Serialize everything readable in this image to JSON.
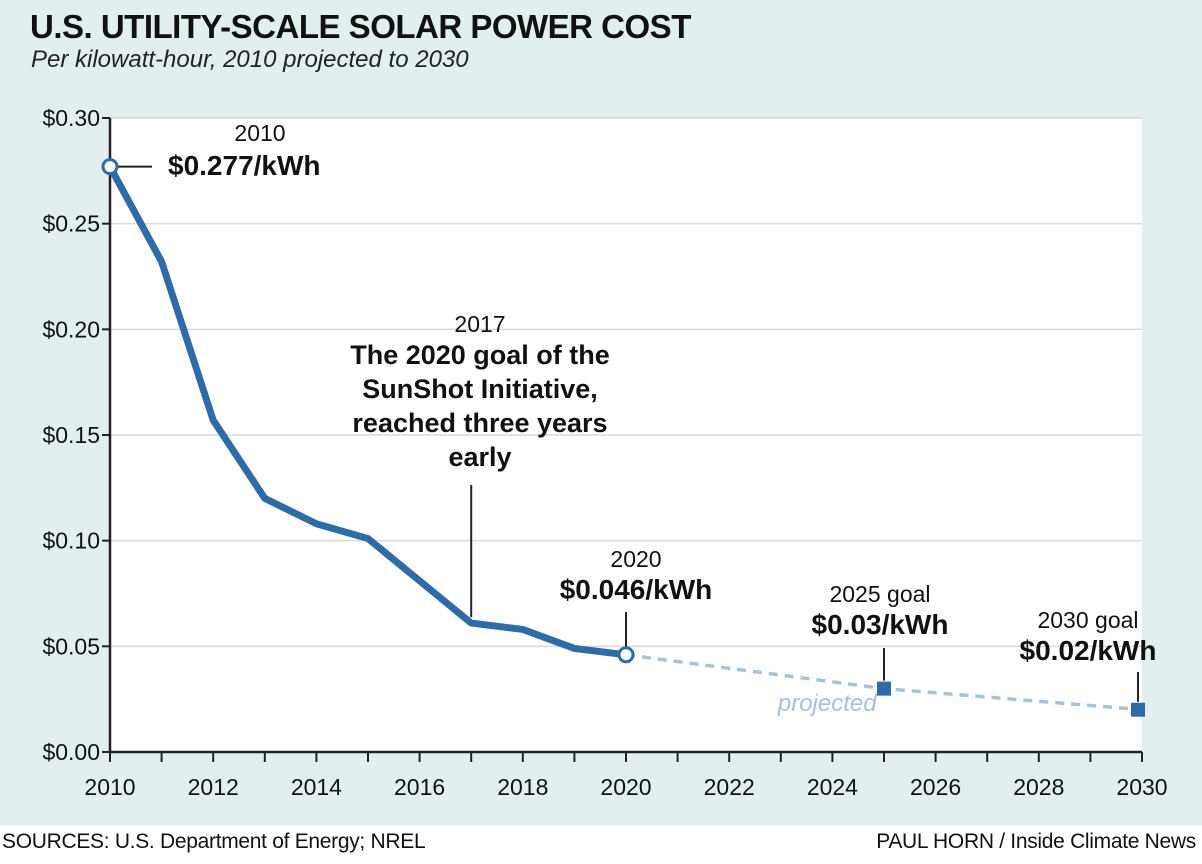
{
  "header": {
    "title": "U.S. UTILITY-SCALE SOLAR POWER COST",
    "subtitle": "Per kilowatt-hour, 2010 projected to 2030"
  },
  "footer": {
    "sources": "SOURCES: U.S. Department of Energy; NREL",
    "credit": "PAUL HORN / Inside Climate News"
  },
  "colors": {
    "background": "#e3efef",
    "plot": "#ffffff",
    "actual_line": "#2e6ca8",
    "projected_line": "#a7c1dd",
    "goal_marker": "#2e6ca8"
  },
  "chart_data": {
    "type": "line",
    "title": "U.S. UTILITY-SCALE SOLAR POWER COST",
    "subtitle": "Per kilowatt-hour, 2010 projected to 2030",
    "xlim": [
      2010,
      2030
    ],
    "ylim": [
      0,
      0.3
    ],
    "x_ticks": [
      2010,
      2012,
      2014,
      2016,
      2018,
      2020,
      2022,
      2024,
      2026,
      2028,
      2030
    ],
    "y_ticks": [
      0,
      0.05,
      0.1,
      0.15,
      0.2,
      0.25,
      0.3
    ],
    "y_tick_labels": [
      "$0.00",
      "$0.05",
      "$0.10",
      "$0.15",
      "$0.20",
      "$0.25",
      "$0.30"
    ],
    "grid": "horizontal",
    "series": [
      {
        "style": "solid",
        "x": [
          2010,
          2011,
          2012,
          2013,
          2014,
          2015,
          2016,
          2017,
          2018,
          2019,
          2020
        ],
        "y": [
          0.277,
          0.232,
          0.157,
          0.12,
          0.108,
          0.101,
          0.081,
          0.061,
          0.058,
          0.049,
          0.046
        ]
      },
      {
        "name": "projected",
        "style": "dashed",
        "x": [
          2020,
          2025,
          2030
        ],
        "y": [
          0.046,
          0.03,
          0.02
        ]
      }
    ],
    "annotations": [
      {
        "year": "2010",
        "value": "$0.277/kWh",
        "x": 2010,
        "y": 0.277
      },
      {
        "year": "2017",
        "lines": [
          "The 2020 goal of the",
          "SunShot Initiative,",
          "reached three years",
          "early"
        ],
        "x": 2017,
        "y": 0.061
      },
      {
        "year": "2020",
        "value": "$0.046/kWh",
        "x": 2020,
        "y": 0.046
      },
      {
        "year": "2025 goal",
        "value": "$0.03/kWh",
        "x": 2025,
        "y": 0.03
      },
      {
        "year": "2030 goal",
        "value": "$0.02/kWh",
        "x": 2030,
        "y": 0.02
      }
    ],
    "projected_label": "projected"
  }
}
